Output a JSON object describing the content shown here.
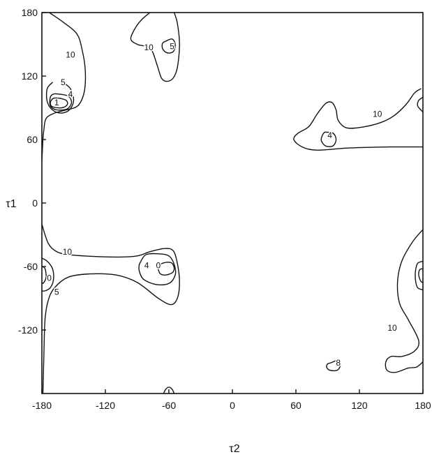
{
  "chart_data": {
    "type": "contour",
    "xlabel": "τ2",
    "ylabel": "τ1",
    "xlim": [
      -180,
      180
    ],
    "ylim": [
      -180,
      180
    ],
    "grid": false,
    "x_ticks": [
      "-180",
      "-120",
      "-60",
      "0",
      "60",
      "120",
      "180"
    ],
    "y_ticks": [
      "180",
      "120",
      "60",
      "0",
      "-60",
      "-120"
    ],
    "contour_labels": [
      {
        "text": "10",
        "x": -153,
        "y": 140
      },
      {
        "text": "5",
        "x": -160,
        "y": 114
      },
      {
        "text": "4",
        "x": -153,
        "y": 103
      },
      {
        "text": "1",
        "x": -166,
        "y": 95
      },
      {
        "text": "10",
        "x": -79,
        "y": 147
      },
      {
        "text": "5",
        "x": -57,
        "y": 148
      },
      {
        "text": "4",
        "x": 92,
        "y": 64
      },
      {
        "text": "10",
        "x": 137,
        "y": 84
      },
      {
        "text": "10",
        "x": -156,
        "y": -46
      },
      {
        "text": "0",
        "x": -173,
        "y": -71
      },
      {
        "text": "5",
        "x": -166,
        "y": -84
      },
      {
        "text": "4",
        "x": -81,
        "y": -59
      },
      {
        "text": "0",
        "x": -70,
        "y": -59
      },
      {
        "text": "10",
        "x": 151,
        "y": -118
      },
      {
        "text": "8",
        "x": 100,
        "y": -151
      }
    ],
    "contours": [
      {
        "level": "10",
        "points": [
          [
            -173,
            180
          ],
          [
            -160,
            171
          ],
          [
            -147,
            160
          ],
          [
            -142,
            145
          ],
          [
            -139,
            125
          ],
          [
            -140,
            105
          ],
          [
            -146,
            92
          ],
          [
            -157,
            88
          ],
          [
            -168,
            85
          ],
          [
            -176,
            80
          ],
          [
            -178,
            70
          ],
          [
            -179,
            60
          ],
          [
            -180,
            40
          ]
        ]
      },
      {
        "level": "5",
        "points": [
          [
            -160,
            114
          ],
          [
            -153,
            108
          ],
          [
            -150,
            97
          ],
          [
            -154,
            88
          ],
          [
            -162,
            85
          ],
          [
            -170,
            88
          ],
          [
            -175,
            96
          ],
          [
            -175,
            108
          ],
          [
            -170,
            114
          ]
        ]
      },
      {
        "level": "4",
        "points": [
          [
            -164,
            103
          ],
          [
            -155,
            101
          ],
          [
            -152,
            95
          ],
          [
            -156,
            89
          ],
          [
            -166,
            88
          ],
          [
            -172,
            92
          ],
          [
            -172,
            100
          ],
          [
            -169,
            103
          ],
          [
            -164,
            103
          ]
        ]
      },
      {
        "level": "1",
        "points": [
          [
            -163,
            99
          ],
          [
            -157,
            97
          ],
          [
            -156,
            93
          ],
          [
            -161,
            90
          ],
          [
            -170,
            91
          ],
          [
            -172,
            95
          ],
          [
            -169,
            99
          ],
          [
            -163,
            99
          ]
        ]
      },
      {
        "level": "10",
        "points": [
          [
            -78,
            180
          ],
          [
            -86,
            173
          ],
          [
            -92,
            165
          ],
          [
            -96,
            155
          ],
          [
            -90,
            150
          ],
          [
            -82,
            148
          ],
          [
            -76,
            144
          ],
          [
            -71,
            130
          ],
          [
            -67,
            118
          ],
          [
            -62,
            115
          ],
          [
            -56,
            118
          ],
          [
            -52,
            128
          ],
          [
            -50,
            150
          ],
          [
            -52,
            170
          ],
          [
            -55,
            180
          ]
        ]
      },
      {
        "level": "5",
        "points": [
          [
            -63,
            153
          ],
          [
            -57,
            155
          ],
          [
            -54,
            150
          ],
          [
            -56,
            143
          ],
          [
            -62,
            142
          ],
          [
            -66,
            146
          ],
          [
            -66,
            151
          ],
          [
            -63,
            153
          ]
        ]
      },
      {
        "level": "10",
        "points": [
          [
            180,
            53
          ],
          [
            150,
            53
          ],
          [
            110,
            52
          ],
          [
            80,
            50
          ],
          [
            66,
            53
          ],
          [
            58,
            60
          ],
          [
            62,
            66
          ],
          [
            72,
            72
          ],
          [
            80,
            84
          ],
          [
            88,
            94
          ],
          [
            94,
            95
          ],
          [
            98,
            88
          ],
          [
            100,
            78
          ],
          [
            108,
            71
          ],
          [
            124,
            72
          ],
          [
            140,
            76
          ],
          [
            152,
            82
          ],
          [
            164,
            93
          ],
          [
            172,
            104
          ],
          [
            178,
            108
          ]
        ]
      },
      {
        "level": "4",
        "points": [
          [
            87,
            67
          ],
          [
            95,
            66
          ],
          [
            98,
            60
          ],
          [
            95,
            54
          ],
          [
            88,
            54
          ],
          [
            84,
            59
          ],
          [
            85,
            64
          ],
          [
            87,
            67
          ]
        ]
      },
      {
        "level": "10",
        "points": [
          [
            180,
            100
          ],
          [
            176,
            97
          ],
          [
            175,
            92
          ],
          [
            178,
            88
          ],
          [
            180,
            86
          ]
        ]
      },
      {
        "level": "10",
        "points": [
          [
            -180,
            -20
          ],
          [
            -177,
            -30
          ],
          [
            -174,
            -38
          ],
          [
            -169,
            -44
          ],
          [
            -160,
            -48
          ],
          [
            -140,
            -50
          ],
          [
            -110,
            -51
          ],
          [
            -90,
            -50
          ],
          [
            -78,
            -46
          ],
          [
            -64,
            -43
          ],
          [
            -56,
            -45
          ],
          [
            -52,
            -57
          ],
          [
            -50,
            -75
          ],
          [
            -52,
            -90
          ],
          [
            -58,
            -96
          ],
          [
            -70,
            -90
          ],
          [
            -90,
            -75
          ],
          [
            -110,
            -68
          ],
          [
            -135,
            -67
          ],
          [
            -155,
            -70
          ],
          [
            -168,
            -80
          ],
          [
            -174,
            -92
          ],
          [
            -177,
            -110
          ],
          [
            -178,
            -140
          ],
          [
            -179,
            -180
          ]
        ]
      },
      {
        "level": "4",
        "points": [
          [
            -88,
            -58
          ],
          [
            -82,
            -49
          ],
          [
            -70,
            -48
          ],
          [
            -60,
            -50
          ],
          [
            -55,
            -58
          ],
          [
            -54,
            -68
          ],
          [
            -60,
            -76
          ],
          [
            -72,
            -77
          ],
          [
            -84,
            -72
          ],
          [
            -88,
            -64
          ],
          [
            -88,
            -58
          ]
        ]
      },
      {
        "level": "0",
        "points": [
          [
            -70,
            -63
          ],
          [
            -68,
            -58
          ],
          [
            -62,
            -56
          ],
          [
            -57,
            -57
          ],
          [
            -55,
            -62
          ],
          [
            -57,
            -66
          ],
          [
            -63,
            -68
          ],
          [
            -68,
            -67
          ],
          [
            -70,
            -63
          ]
        ]
      },
      {
        "level": "5",
        "points": [
          [
            -180,
            -52
          ],
          [
            -175,
            -55
          ],
          [
            -170,
            -62
          ],
          [
            -169,
            -72
          ],
          [
            -172,
            -80
          ],
          [
            -177,
            -83
          ],
          [
            -180,
            -83
          ]
        ]
      },
      {
        "level": "0",
        "points": [
          [
            -180,
            -60
          ],
          [
            -177,
            -62
          ],
          [
            -176,
            -70
          ],
          [
            -178,
            -75
          ],
          [
            -180,
            -76
          ]
        ]
      },
      {
        "level": "10",
        "points": [
          [
            180,
            -25
          ],
          [
            170,
            -37
          ],
          [
            160,
            -55
          ],
          [
            156,
            -75
          ],
          [
            158,
            -95
          ],
          [
            166,
            -110
          ],
          [
            176,
            -130
          ],
          [
            172,
            -140
          ],
          [
            160,
            -145
          ],
          [
            150,
            -145
          ],
          [
            145,
            -150
          ],
          [
            146,
            -158
          ],
          [
            154,
            -160
          ],
          [
            166,
            -156
          ],
          [
            174,
            -155
          ],
          [
            180,
            -150
          ]
        ]
      },
      {
        "level": "4",
        "points": [
          [
            180,
            -55
          ],
          [
            175,
            -57
          ],
          [
            173,
            -64
          ],
          [
            173,
            -73
          ],
          [
            175,
            -80
          ],
          [
            180,
            -82
          ]
        ]
      },
      {
        "level": "1",
        "points": [
          [
            180,
            -62
          ],
          [
            177,
            -63
          ],
          [
            176,
            -68
          ],
          [
            178,
            -74
          ],
          [
            180,
            -75
          ]
        ]
      },
      {
        "level": "8",
        "points": [
          [
            93,
            -151
          ],
          [
            99,
            -149
          ],
          [
            102,
            -153
          ],
          [
            99,
            -158
          ],
          [
            92,
            -158
          ],
          [
            89,
            -155
          ],
          [
            90,
            -152
          ],
          [
            93,
            -151
          ]
        ]
      },
      {
        "level": "",
        "points": [
          [
            -65,
            -180
          ],
          [
            -63,
            -176
          ],
          [
            -60,
            -174
          ],
          [
            -57,
            -176
          ],
          [
            -55,
            -180
          ]
        ]
      }
    ]
  }
}
